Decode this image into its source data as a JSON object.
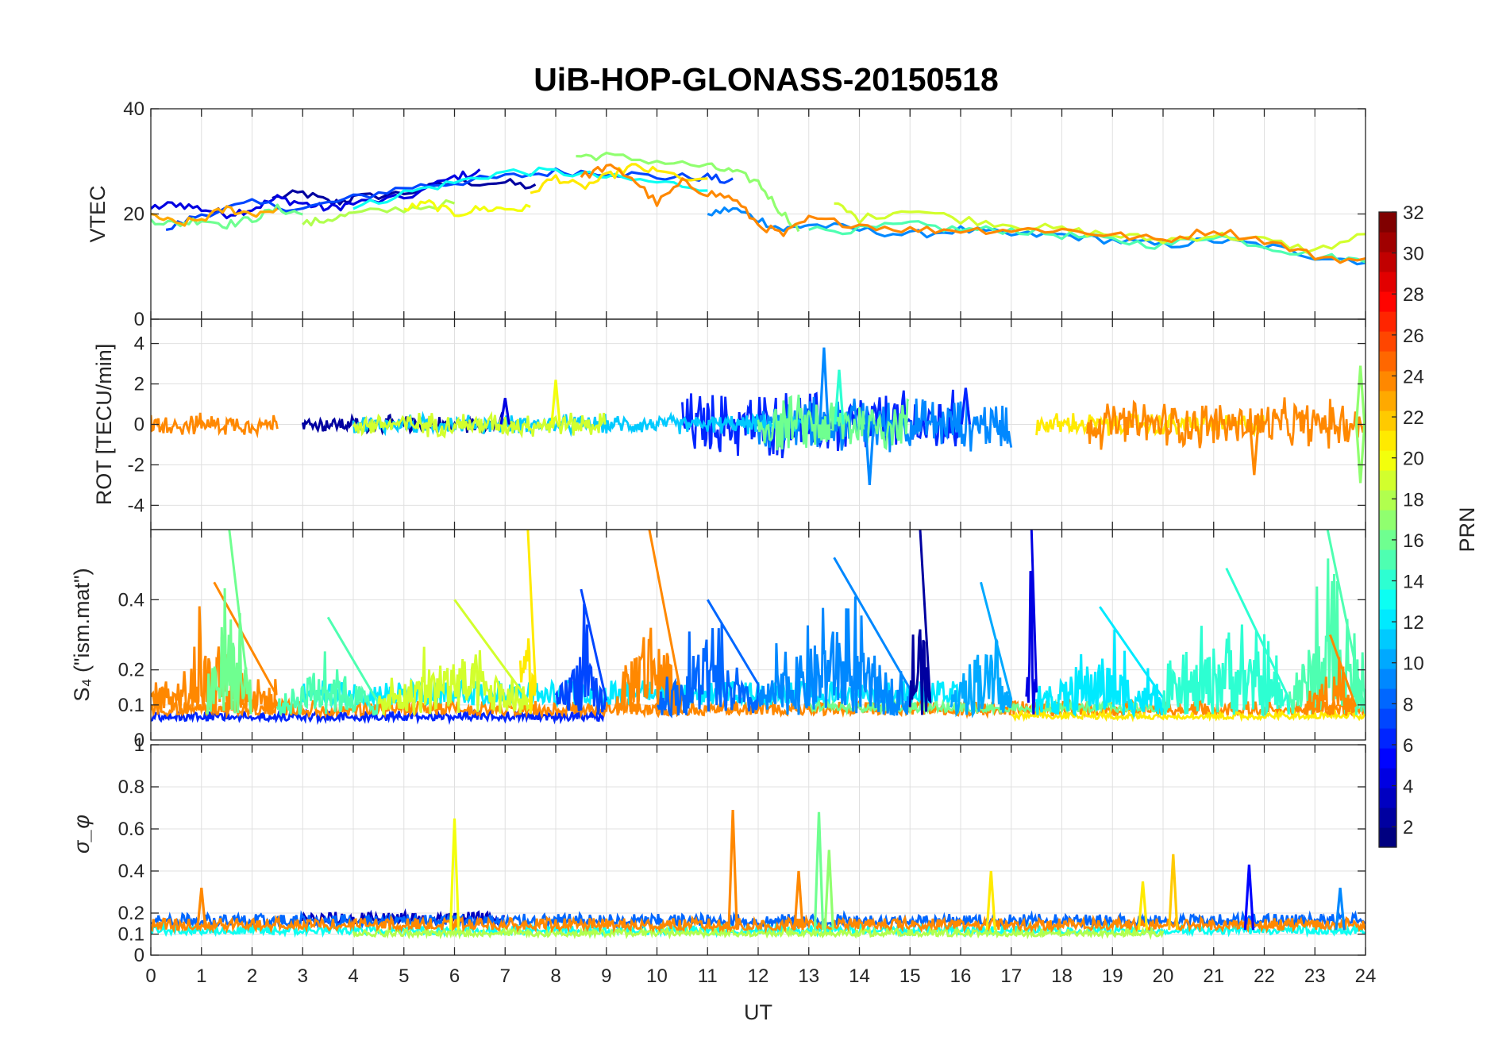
{
  "chart_data": [
    {
      "type": "line",
      "panel": "vtec",
      "title": "UiB-HOP-GLONASS-20150518",
      "ylabel": "VTEC",
      "xlim": [
        0,
        24
      ],
      "ylim": [
        0,
        40
      ],
      "yticks": [
        0,
        20,
        40
      ],
      "grid": true,
      "series": [
        {
          "prn": 2,
          "x": [
            2.4,
            3,
            3.6,
            4,
            5,
            6,
            7,
            7.6
          ],
          "y": [
            23,
            24,
            22,
            23,
            24,
            26,
            26,
            25
          ]
        },
        {
          "prn": 4,
          "x": [
            0,
            0.5,
            1,
            1.5,
            2,
            2.5,
            3,
            3.5,
            4,
            5,
            6,
            6.5
          ],
          "y": [
            21,
            22,
            21,
            20,
            21,
            23,
            22,
            21,
            22,
            23,
            27,
            28
          ]
        },
        {
          "prn": 7,
          "x": [
            0.3,
            1,
            2,
            3,
            4,
            5,
            6,
            7,
            8,
            9,
            10,
            11,
            11.5
          ],
          "y": [
            17,
            20,
            22,
            21,
            23,
            25,
            26,
            27,
            28,
            28,
            27,
            27,
            26
          ]
        },
        {
          "prn": 9,
          "x": [
            11,
            11.5,
            12,
            12.5,
            13,
            14,
            15,
            16,
            17,
            18,
            19,
            20,
            21,
            22,
            23,
            24
          ],
          "y": [
            20,
            21,
            19,
            17,
            18,
            17,
            16,
            17,
            16,
            16,
            15,
            14,
            15,
            14,
            12,
            11
          ]
        },
        {
          "prn": 13,
          "x": [
            4,
            5,
            6,
            7,
            8,
            9,
            10,
            11
          ],
          "y": [
            21,
            24,
            26,
            28,
            28,
            27,
            26,
            25
          ]
        },
        {
          "prn": 15,
          "x": [
            13,
            14,
            15,
            16,
            17,
            18,
            19,
            20,
            21,
            22,
            23,
            24
          ],
          "y": [
            17,
            17,
            18,
            17,
            17,
            16,
            15,
            14,
            16,
            14,
            12,
            11
          ]
        },
        {
          "prn": 16,
          "x": [
            0,
            0.5,
            1,
            1.5,
            2,
            2.5,
            3
          ],
          "y": [
            19,
            18,
            19,
            18,
            19,
            21,
            20
          ]
        },
        {
          "prn": 17,
          "x": [
            8.4,
            9,
            10,
            11,
            11.5,
            12,
            12.4,
            12.8
          ],
          "y": [
            31,
            31,
            30,
            29,
            28,
            26,
            21,
            17
          ]
        },
        {
          "prn": 18,
          "x": [
            3,
            3.5,
            4,
            5,
            6
          ],
          "y": [
            18,
            19,
            20,
            21,
            22
          ]
        },
        {
          "prn": 19,
          "x": [
            13.5,
            14,
            15,
            16,
            17,
            18,
            19,
            20,
            21,
            22,
            23,
            24
          ],
          "y": [
            22,
            19,
            21,
            19,
            18,
            17,
            16,
            15,
            16,
            15,
            13,
            16
          ]
        },
        {
          "prn": 20,
          "x": [
            5,
            5.5,
            6,
            6.5,
            7,
            7.5
          ],
          "y": [
            21,
            22,
            20,
            21,
            21,
            21
          ]
        },
        {
          "prn": 21,
          "x": [
            7.5,
            8,
            8.5,
            9,
            9.5,
            10,
            11
          ],
          "y": [
            24,
            27,
            25,
            27,
            29,
            28,
            26
          ]
        },
        {
          "prn": 23,
          "x": [
            0,
            0.5,
            1,
            1.5,
            2,
            2.5
          ],
          "y": [
            20,
            18,
            19,
            21,
            20,
            21
          ]
        },
        {
          "prn": 24,
          "x": [
            8.5,
            9,
            9.5,
            10,
            10.5,
            11,
            11.5,
            12,
            12.5,
            13,
            14,
            15,
            16,
            17,
            18,
            19,
            20,
            21,
            22,
            23,
            24
          ],
          "y": [
            27,
            29,
            27,
            22,
            26,
            24,
            23,
            18,
            16,
            19,
            18,
            17,
            17,
            17,
            17,
            16,
            15,
            17,
            15,
            12,
            11
          ]
        }
      ]
    },
    {
      "type": "line",
      "panel": "rot",
      "ylabel": "ROT [TECU/min]",
      "xlim": [
        0,
        24
      ],
      "ylim": [
        -5.2,
        5.2
      ],
      "yticks": [
        -4,
        -2,
        0,
        2,
        4
      ],
      "grid": true,
      "noise_series": [
        {
          "prn": 2,
          "x0": 3,
          "x1": 7.2,
          "amp": 0.35
        },
        {
          "prn": 6,
          "x0": 10.5,
          "x1": 16,
          "amp": 1.4
        },
        {
          "prn": 9,
          "x0": 12,
          "x1": 17,
          "amp": 1.1
        },
        {
          "prn": 11,
          "x0": 4,
          "x1": 13,
          "amp": 0.4
        },
        {
          "prn": 16,
          "x0": 12,
          "x1": 15,
          "amp": 1.2
        },
        {
          "prn": 19,
          "x0": 4,
          "x1": 9,
          "amp": 0.5
        },
        {
          "prn": 21,
          "x0": 17.5,
          "x1": 22,
          "amp": 0.5
        },
        {
          "prn": 24,
          "x0": 0,
          "x1": 2.5,
          "amp": 0.45
        },
        {
          "prn": 24,
          "x0": 18.5,
          "x1": 24,
          "amp": 1.0
        }
      ],
      "peaks": [
        {
          "prn": 4,
          "x": 7.0,
          "y": 1.3
        },
        {
          "prn": 20,
          "x": 8.0,
          "y": 2.2
        },
        {
          "prn": 9,
          "x": 13.3,
          "y": 3.8
        },
        {
          "prn": 14,
          "x": 13.6,
          "y": 2.7
        },
        {
          "prn": 9,
          "x": 14.2,
          "y": -3.0
        },
        {
          "prn": 6,
          "x": 16.1,
          "y": 1.8
        },
        {
          "prn": 17,
          "x": 23.9,
          "y": 2.9
        },
        {
          "prn": 17,
          "x": 23.9,
          "y": -2.9
        },
        {
          "prn": 24,
          "x": 21.8,
          "y": -2.5
        }
      ]
    },
    {
      "type": "line",
      "panel": "s4",
      "ylabel": "S₄ (\"ism.mat\")",
      "xlim": [
        0,
        24
      ],
      "ylim": [
        0,
        0.6
      ],
      "yticks": [
        0.1,
        0.2,
        0.4
      ],
      "baseline_label": "0",
      "grid": true,
      "noise_series": [
        {
          "prn": 6,
          "x0": 0,
          "x1": 9,
          "base": 0.055,
          "amp": 0.02
        },
        {
          "prn": 24,
          "x0": 0,
          "x1": 24,
          "base": 0.07,
          "amp": 0.03
        },
        {
          "prn": 12,
          "x0": 3,
          "x1": 16,
          "base": 0.1,
          "amp": 0.05
        },
        {
          "prn": 16,
          "x0": 13,
          "x1": 20,
          "base": 0.08,
          "amp": 0.02
        },
        {
          "prn": 21,
          "x0": 17,
          "x1": 24,
          "base": 0.06,
          "amp": 0.015
        }
      ],
      "bursts": [
        {
          "prn": 24,
          "x0": 0,
          "x1": 2.5,
          "peak": 0.45
        },
        {
          "prn": 16,
          "x0": 1.1,
          "x1": 2.0,
          "peak": 0.6
        },
        {
          "prn": 15,
          "x0": 2.5,
          "x1": 4.5,
          "peak": 0.35
        },
        {
          "prn": 19,
          "x0": 4.5,
          "x1": 7.5,
          "peak": 0.4
        },
        {
          "prn": 21,
          "x0": 7.3,
          "x1": 7.6,
          "peak": 0.6
        },
        {
          "prn": 7,
          "x0": 8,
          "x1": 9,
          "peak": 0.43
        },
        {
          "prn": 24,
          "x0": 9.2,
          "x1": 10.5,
          "peak": 0.6
        },
        {
          "prn": 8,
          "x0": 10,
          "x1": 12,
          "peak": 0.4
        },
        {
          "prn": 9,
          "x0": 12,
          "x1": 15,
          "peak": 0.52
        },
        {
          "prn": 2,
          "x0": 15.0,
          "x1": 15.4,
          "peak": 0.6
        },
        {
          "prn": 10,
          "x0": 15.8,
          "x1": 17,
          "peak": 0.45
        },
        {
          "prn": 4,
          "x0": 17.3,
          "x1": 17.5,
          "peak": 0.6
        },
        {
          "prn": 12,
          "x0": 17.5,
          "x1": 20,
          "peak": 0.38
        },
        {
          "prn": 14,
          "x0": 20,
          "x1": 22.5,
          "peak": 0.49
        },
        {
          "prn": 15,
          "x0": 22.5,
          "x1": 24,
          "peak": 0.6
        },
        {
          "prn": 24,
          "x0": 22.8,
          "x1": 23.8,
          "peak": 0.3
        }
      ]
    },
    {
      "type": "line",
      "panel": "sigma_phi",
      "ylabel": "σ_φ",
      "xlabel": "UT",
      "xlim": [
        0,
        24
      ],
      "ylim": [
        0,
        1
      ],
      "yticks": [
        0,
        0.1,
        0.2,
        0.4,
        0.6,
        0.8,
        1
      ],
      "xticks": [
        0,
        1,
        2,
        3,
        4,
        5,
        6,
        7,
        8,
        9,
        10,
        11,
        12,
        13,
        14,
        15,
        16,
        17,
        18,
        19,
        20,
        21,
        22,
        23,
        24
      ],
      "grid": true,
      "noise_series": [
        {
          "prn": 3,
          "x0": 3,
          "x1": 7,
          "base": 0.15,
          "amp": 0.04
        },
        {
          "prn": 8,
          "x0": 0,
          "x1": 24,
          "base": 0.14,
          "amp": 0.04
        },
        {
          "prn": 13,
          "x0": 0,
          "x1": 24,
          "base": 0.1,
          "amp": 0.03
        },
        {
          "prn": 18,
          "x0": 4,
          "x1": 20,
          "base": 0.09,
          "amp": 0.025
        },
        {
          "prn": 24,
          "x0": 0,
          "x1": 24,
          "base": 0.12,
          "amp": 0.04
        }
      ],
      "peaks": [
        {
          "prn": 24,
          "x": 1.0,
          "y": 0.32
        },
        {
          "prn": 20,
          "x": 6.0,
          "y": 0.65
        },
        {
          "prn": 24,
          "x": 11.5,
          "y": 0.69
        },
        {
          "prn": 24,
          "x": 12.8,
          "y": 0.4
        },
        {
          "prn": 16,
          "x": 13.2,
          "y": 0.68
        },
        {
          "prn": 17,
          "x": 13.4,
          "y": 0.5
        },
        {
          "prn": 21,
          "x": 16.6,
          "y": 0.4
        },
        {
          "prn": 21,
          "x": 19.6,
          "y": 0.35
        },
        {
          "prn": 22,
          "x": 20.2,
          "y": 0.48
        },
        {
          "prn": 5,
          "x": 21.7,
          "y": 0.43
        },
        {
          "prn": 9,
          "x": 23.5,
          "y": 0.32
        }
      ]
    }
  ],
  "colorbar": {
    "label": "PRN",
    "ticks": [
      2,
      4,
      6,
      8,
      10,
      12,
      14,
      16,
      18,
      20,
      22,
      24,
      26,
      28,
      30,
      32
    ],
    "range": [
      1,
      32
    ],
    "colormap": "jet"
  }
}
